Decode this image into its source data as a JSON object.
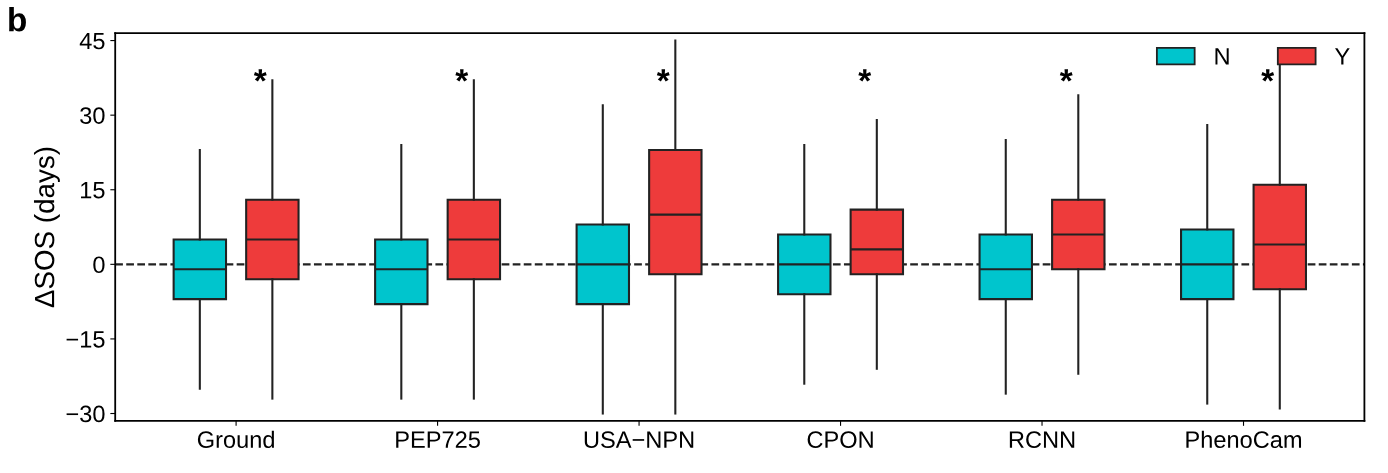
{
  "chart_data": {
    "type": "box",
    "ylabel": "ΔSOS (days)",
    "categories": [
      "Ground",
      "PEP725",
      "USA−NPN",
      "CPON",
      "RCNN",
      "PhenoCam"
    ],
    "series": [
      {
        "name": "N",
        "color": "#00c5cd",
        "boxes": [
          {
            "low": -25,
            "q1": -7,
            "median": -1,
            "q3": 5,
            "high": 23
          },
          {
            "low": -27,
            "q1": -8,
            "median": -1,
            "q3": 5,
            "high": 24
          },
          {
            "low": -30,
            "q1": -8,
            "median": 0,
            "q3": 8,
            "high": 32
          },
          {
            "low": -24,
            "q1": -6,
            "median": 0,
            "q3": 6,
            "high": 24
          },
          {
            "low": -26,
            "q1": -7,
            "median": -1,
            "q3": 6,
            "high": 25
          },
          {
            "low": -28,
            "q1": -7,
            "median": 0,
            "q3": 7,
            "high": 28
          }
        ]
      },
      {
        "name": "Y",
        "color": "#ee3b3b",
        "boxes": [
          {
            "low": -27,
            "q1": -3,
            "median": 5,
            "q3": 13,
            "high": 37
          },
          {
            "low": -27,
            "q1": -3,
            "median": 5,
            "q3": 13,
            "high": 37
          },
          {
            "low": -30,
            "q1": -2,
            "median": 10,
            "q3": 23,
            "high": 45
          },
          {
            "low": -21,
            "q1": -2,
            "median": 3,
            "q3": 11,
            "high": 29
          },
          {
            "low": -22,
            "q1": -1,
            "median": 6,
            "q3": 13,
            "high": 34
          },
          {
            "low": -29,
            "q1": -5,
            "median": 4,
            "q3": 16,
            "high": 40
          }
        ]
      }
    ],
    "ylim": [
      -31.5,
      46.5
    ],
    "yticks": [
      {
        "value": -30,
        "label": "−30"
      },
      {
        "value": -15,
        "label": "−15"
      },
      0,
      15,
      30,
      45
    ],
    "ref_lines": [
      {
        "axis": "y",
        "value": 0,
        "line_style": "dashed",
        "color": "#222222"
      }
    ],
    "annotations": [
      "b",
      "*",
      "*",
      "*",
      "*",
      "*",
      "*"
    ],
    "legend": "top right",
    "grid": false
  }
}
